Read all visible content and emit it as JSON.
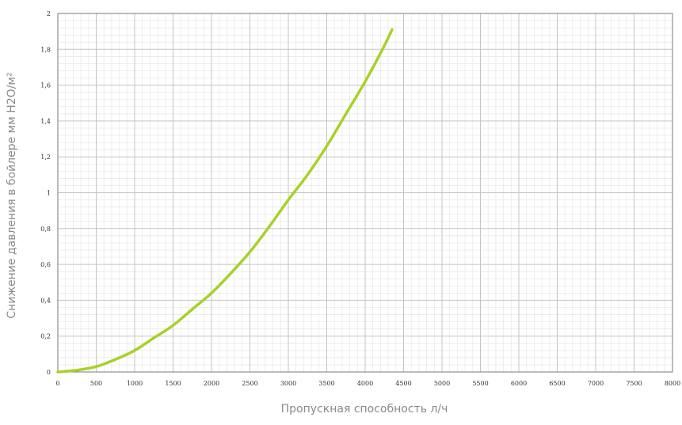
{
  "chart_data": {
    "type": "line",
    "xlabel": "Пропускная способность л/ч",
    "ylabel": "Снижение давления в бойлере мм H2O/м²",
    "xlim": [
      0,
      8000
    ],
    "ylim": [
      0,
      2
    ],
    "x_ticks": [
      0,
      500,
      1000,
      1500,
      2000,
      2500,
      3000,
      3500,
      4000,
      4500,
      5000,
      5500,
      6000,
      6500,
      7000,
      7500,
      8000
    ],
    "x_tick_labels": [
      "0",
      "500",
      "1000",
      "1500",
      "2000",
      "2500",
      "3000",
      "3500",
      "4000",
      "4500",
      "5000",
      "5500",
      "6000",
      "6500",
      "7000",
      "7500",
      "8000"
    ],
    "y_ticks": [
      0,
      0.2,
      0.4,
      0.6,
      0.8,
      1,
      1.2,
      1.4,
      1.6,
      1.8,
      2
    ],
    "y_tick_labels": [
      "0",
      "0,2",
      "0,4",
      "0,6",
      "0,8",
      "1",
      "1,2",
      "1,4",
      "1,6",
      "1,8",
      "2"
    ],
    "grid": true,
    "minor_grid": true,
    "series": [
      {
        "color": "#a8d12a",
        "x": [
          0,
          250,
          500,
          750,
          1000,
          1250,
          1500,
          1750,
          2000,
          2250,
          2500,
          2750,
          3000,
          3250,
          3500,
          3750,
          4000,
          4250,
          4350
        ],
        "y": [
          0,
          0.01,
          0.03,
          0.07,
          0.12,
          0.19,
          0.26,
          0.35,
          0.44,
          0.55,
          0.67,
          0.81,
          0.96,
          1.1,
          1.26,
          1.44,
          1.62,
          1.82,
          1.91
        ]
      }
    ]
  }
}
